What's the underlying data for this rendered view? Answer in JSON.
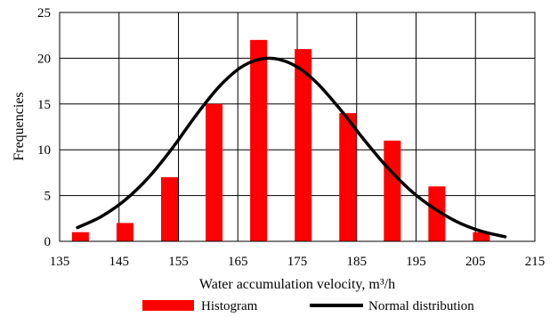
{
  "chart_data": {
    "type": "bar",
    "title": "",
    "xlabel": "Water accumulation velocity, m³/h",
    "ylabel": "Frequencies",
    "xlim": [
      135,
      215
    ],
    "ylim": [
      0,
      25
    ],
    "x_ticks": [
      "135",
      "145",
      "155",
      "165",
      "175",
      "185",
      "195",
      "205",
      "215"
    ],
    "y_ticks": [
      "0",
      "5",
      "10",
      "15",
      "20",
      "25"
    ],
    "grid": true,
    "legend_position": "bottom",
    "series": [
      {
        "name": "Histogram",
        "type": "bar",
        "color": "#ff0000",
        "x": [
          138.5,
          146,
          153.5,
          161,
          168.5,
          176,
          183.5,
          191,
          198.5,
          206
        ],
        "values": [
          1,
          2,
          7,
          15,
          22,
          21,
          14,
          11,
          6,
          1
        ]
      },
      {
        "name": "Normal distribution",
        "type": "line",
        "color": "#000000",
        "x": [
          138,
          142,
          146,
          150,
          154,
          158,
          162,
          166,
          170,
          174,
          178,
          182,
          186,
          190,
          194,
          198,
          202,
          206,
          210
        ],
        "y": [
          1.5,
          2.7,
          4.5,
          7.0,
          10.2,
          13.8,
          17.0,
          19.2,
          20.0,
          19.4,
          17.5,
          14.6,
          11.3,
          8.2,
          5.6,
          3.6,
          2.1,
          1.1,
          0.5
        ]
      }
    ]
  }
}
